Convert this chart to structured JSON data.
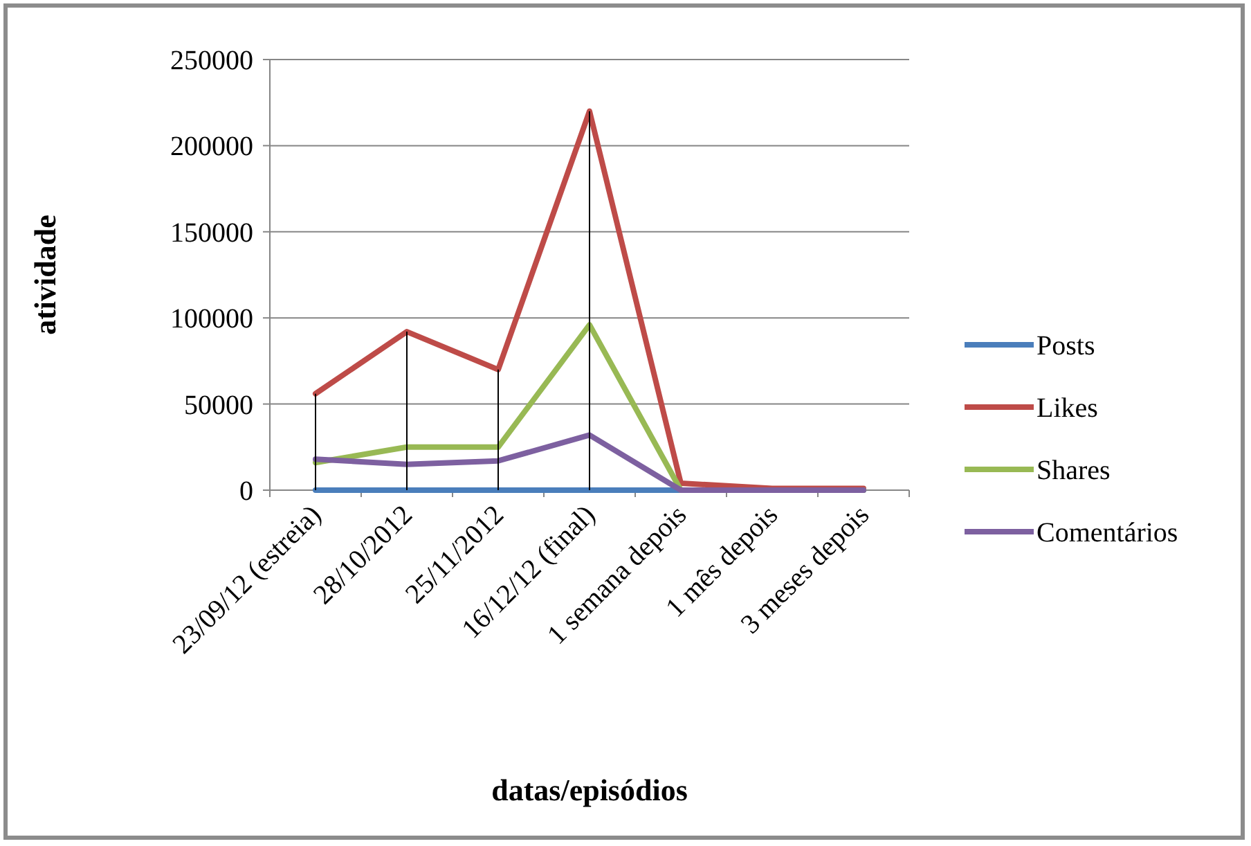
{
  "chart_data": {
    "type": "line",
    "xlabel": "datas/episódios",
    "ylabel": "atividade",
    "categories": [
      "23/09/12 (estreia)",
      "28/10/2012",
      "25/11/2012",
      "16/12/12 (final)",
      "1 semana depois",
      "1 mês depois",
      "3 meses depois"
    ],
    "series": [
      {
        "name": "Posts",
        "color": "#4a7ebb",
        "values": [
          0,
          0,
          0,
          0,
          0,
          0,
          0
        ]
      },
      {
        "name": "Likes",
        "color": "#be4b48",
        "values": [
          56000,
          92000,
          70000,
          220000,
          4000,
          1000,
          1000
        ],
        "errors": [
          [
            0,
            56000
          ],
          [
            0,
            92000
          ],
          [
            0,
            70000
          ],
          [
            0,
            220000
          ],
          null,
          null,
          null
        ]
      },
      {
        "name": "Shares",
        "color": "#98b954",
        "values": [
          16000,
          25000,
          25000,
          96000,
          0,
          0,
          0
        ]
      },
      {
        "name": "Comentários",
        "color": "#7d60a0",
        "values": [
          18000,
          15000,
          17000,
          32000,
          0,
          0,
          0
        ]
      }
    ],
    "ylim": [
      0,
      250000
    ],
    "yticks": [
      0,
      50000,
      100000,
      150000,
      200000,
      250000
    ],
    "grid": "y",
    "legend": "right",
    "marker": "none",
    "line_style": "solid"
  }
}
